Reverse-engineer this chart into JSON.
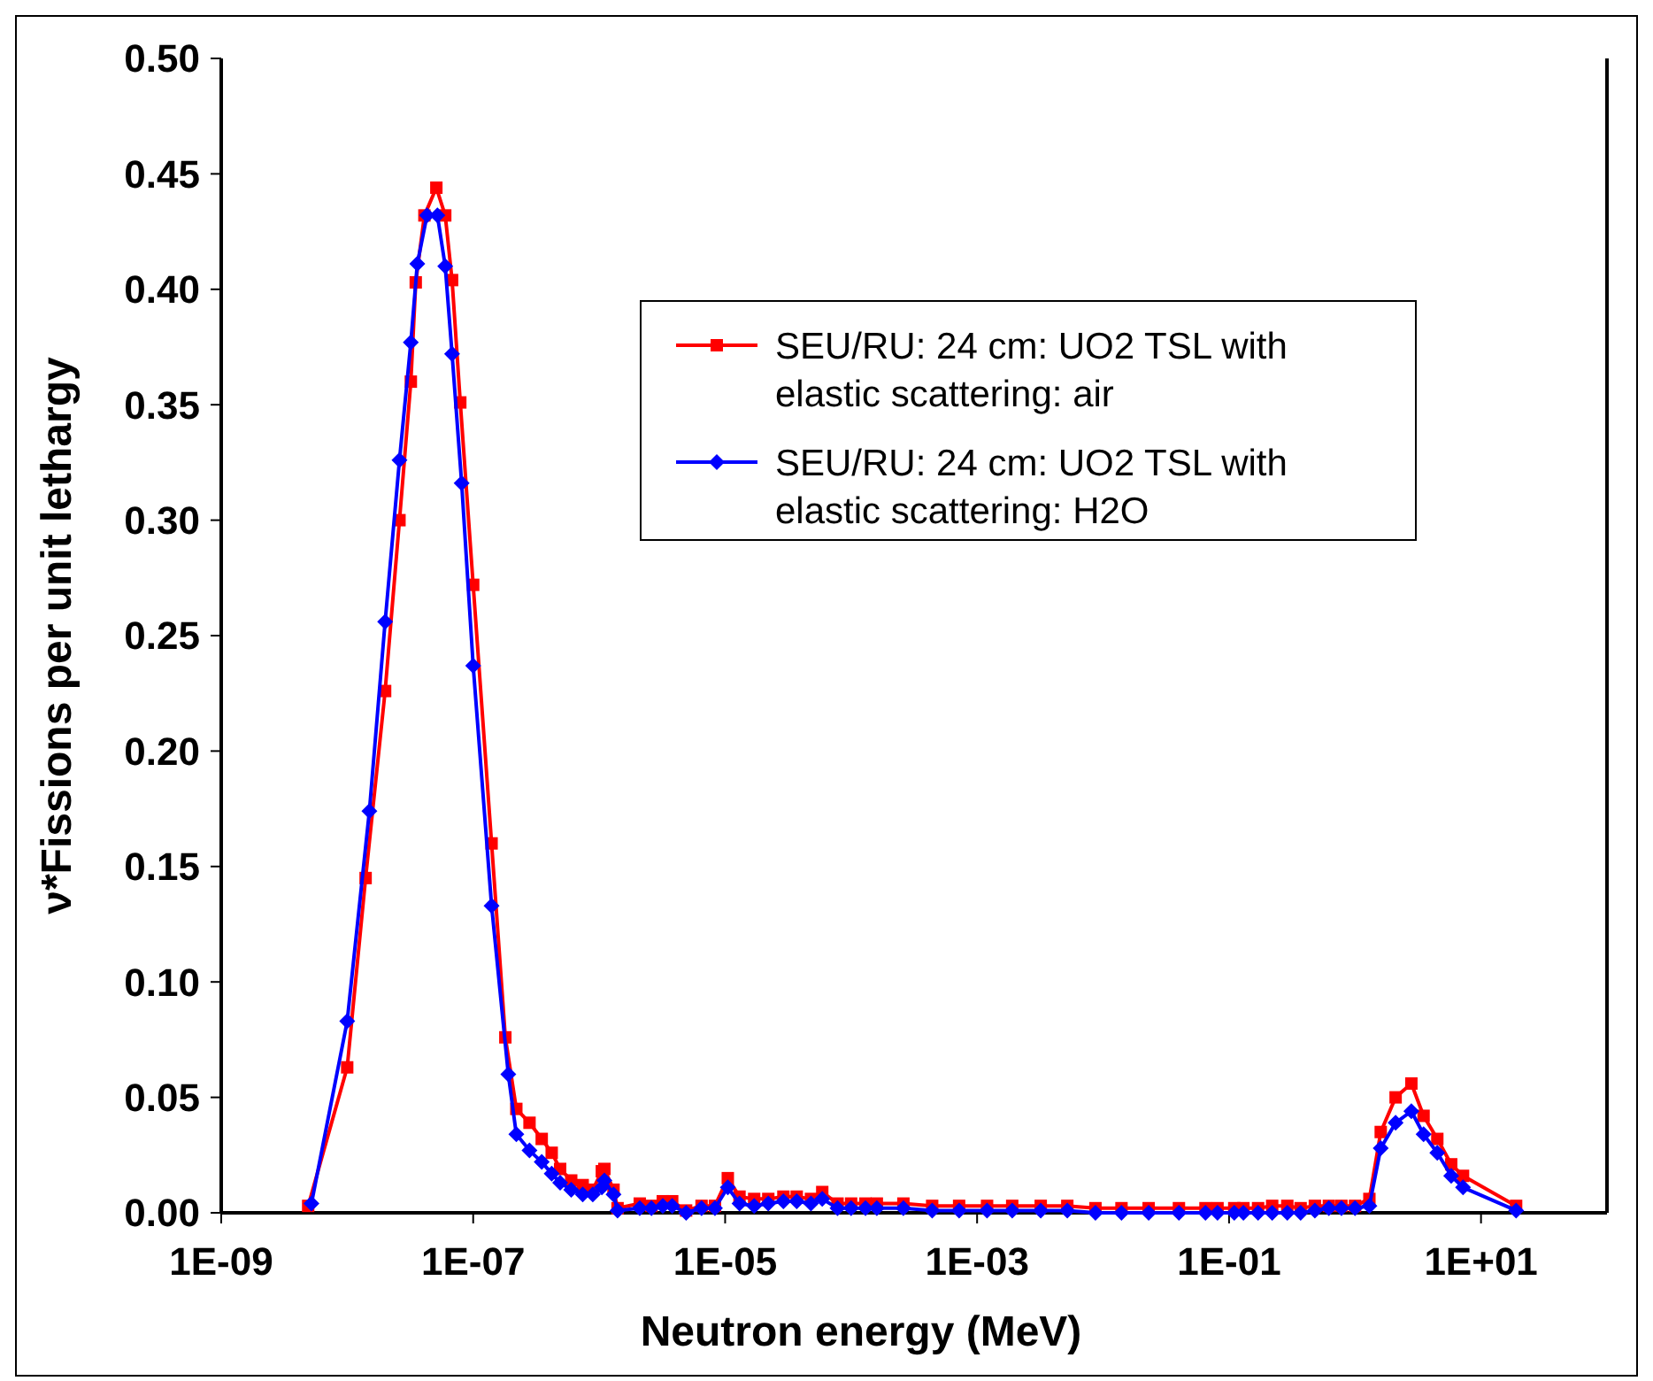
{
  "chart_data": {
    "type": "line",
    "xlabel": "Neutron energy (MeV)",
    "ylabel": "ν*Fissions per unit lethargy",
    "log": "x",
    "xlim": [
      1e-09,
      100
    ],
    "xticks": [
      {
        "value": 1e-09,
        "label": "1E-09"
      },
      {
        "value": 1e-07,
        "label": "1E-07"
      },
      {
        "value": 1e-05,
        "label": "1E-05"
      },
      {
        "value": 0.001,
        "label": "1E-03"
      },
      {
        "value": 0.1,
        "label": "1E-01"
      },
      {
        "value": 10,
        "label": "1E+01"
      }
    ],
    "ylim": [
      0,
      0.5
    ],
    "yticks": [
      {
        "value": 0,
        "label": "0.00"
      },
      {
        "value": 0.05,
        "label": "0.05"
      },
      {
        "value": 0.1,
        "label": "0.10"
      },
      {
        "value": 0.15,
        "label": "0.15"
      },
      {
        "value": 0.2,
        "label": "0.20"
      },
      {
        "value": 0.25,
        "label": "0.25"
      },
      {
        "value": 0.3,
        "label": "0.30"
      },
      {
        "value": 0.35,
        "label": "0.35"
      },
      {
        "value": 0.4,
        "label": "0.40"
      },
      {
        "value": 0.45,
        "label": "0.45"
      },
      {
        "value": 0.5,
        "label": "0.50"
      }
    ],
    "grid": false,
    "legend": "top right",
    "line_style": "solid",
    "series": [
      {
        "name": "SEU/RU: 24 cm: UO2 TSL with elastic scattering: air",
        "color": "#ff0000",
        "marker": "square",
        "x": [
          4.9e-09,
          1e-08,
          1.4e-08,
          2e-08,
          2.6e-08,
          3.2e-08,
          3.5e-08,
          4.1e-08,
          5.1e-08,
          6e-08,
          6.8e-08,
          7.9e-08,
          1e-07,
          1.4e-07,
          1.8e-07,
          2.2e-07,
          2.8e-07,
          3.5e-07,
          4.2e-07,
          4.9e-07,
          6e-07,
          7.4e-07,
          8.9e-07,
          1.05e-06,
          1.1e-06,
          1.3e-06,
          1.4e-06,
          2.1e-06,
          2.6e-06,
          3.2e-06,
          3.8e-06,
          4.9e-06,
          6.5e-06,
          8.3e-06,
          1.05e-05,
          1.3e-05,
          1.7e-05,
          2.2e-05,
          2.9e-05,
          3.7e-05,
          4.8e-05,
          5.9e-05,
          7.8e-05,
          0.0001,
          0.00013,
          0.00016,
          0.00026,
          0.00044,
          0.00072,
          0.0012,
          0.0019,
          0.0032,
          0.0052,
          0.0087,
          0.014,
          0.023,
          0.04,
          0.065,
          0.081,
          0.11,
          0.13,
          0.17,
          0.22,
          0.29,
          0.37,
          0.48,
          0.62,
          0.78,
          1,
          1.3,
          1.6,
          2.1,
          2.8,
          3.5,
          4.5,
          5.8,
          7.2,
          19
        ],
        "values": [
          0.003,
          0.063,
          0.145,
          0.226,
          0.3,
          0.36,
          0.403,
          0.432,
          0.444,
          0.432,
          0.404,
          0.351,
          0.272,
          0.16,
          0.076,
          0.045,
          0.039,
          0.032,
          0.026,
          0.019,
          0.014,
          0.012,
          0.01,
          0.018,
          0.019,
          0.01,
          0.002,
          0.004,
          0.003,
          0.005,
          0.005,
          0.001,
          0.003,
          0.003,
          0.015,
          0.007,
          0.006,
          0.006,
          0.007,
          0.007,
          0.006,
          0.009,
          0.004,
          0.004,
          0.004,
          0.004,
          0.004,
          0.003,
          0.003,
          0.003,
          0.003,
          0.003,
          0.003,
          0.002,
          0.002,
          0.002,
          0.002,
          0.002,
          0.002,
          0.002,
          0.002,
          0.002,
          0.003,
          0.003,
          0.002,
          0.003,
          0.003,
          0.003,
          0.003,
          0.006,
          0.035,
          0.05,
          0.056,
          0.042,
          0.032,
          0.021,
          0.016,
          0.003
        ]
      },
      {
        "name": "SEU/RU: 24 cm: UO2 TSL with elastic scattering: H2O",
        "color": "#0000ff",
        "marker": "diamond",
        "x": [
          5.2e-09,
          1e-08,
          1.5e-08,
          2e-08,
          2.6e-08,
          3.2e-08,
          3.6e-08,
          4.3e-08,
          5.2e-08,
          6e-08,
          6.8e-08,
          8.1e-08,
          1e-07,
          1.4e-07,
          1.9e-07,
          2.2e-07,
          2.8e-07,
          3.5e-07,
          4.2e-07,
          4.9e-07,
          6e-07,
          7.4e-07,
          8.9e-07,
          1.05e-06,
          1.1e-06,
          1.3e-06,
          1.4e-06,
          2.1e-06,
          2.6e-06,
          3.2e-06,
          3.8e-06,
          4.9e-06,
          6.5e-06,
          8.3e-06,
          1.05e-05,
          1.3e-05,
          1.7e-05,
          2.2e-05,
          2.9e-05,
          3.7e-05,
          4.8e-05,
          5.9e-05,
          7.8e-05,
          0.0001,
          0.00013,
          0.00016,
          0.00026,
          0.00044,
          0.00072,
          0.0012,
          0.0019,
          0.0032,
          0.0052,
          0.0087,
          0.014,
          0.023,
          0.04,
          0.065,
          0.081,
          0.11,
          0.13,
          0.17,
          0.22,
          0.29,
          0.37,
          0.48,
          0.62,
          0.78,
          1,
          1.3,
          1.6,
          2.1,
          2.8,
          3.5,
          4.5,
          5.8,
          7.2,
          19
        ],
        "values": [
          0.004,
          0.083,
          0.174,
          0.256,
          0.326,
          0.377,
          0.411,
          0.432,
          0.432,
          0.41,
          0.372,
          0.316,
          0.237,
          0.133,
          0.06,
          0.034,
          0.027,
          0.022,
          0.017,
          0.013,
          0.01,
          0.008,
          0.008,
          0.011,
          0.014,
          0.008,
          0.001,
          0.002,
          0.002,
          0.003,
          0.003,
          0,
          0.002,
          0.002,
          0.011,
          0.004,
          0.003,
          0.004,
          0.005,
          0.005,
          0.004,
          0.006,
          0.002,
          0.002,
          0.002,
          0.002,
          0.002,
          0.001,
          0.001,
          0.001,
          0.001,
          0.001,
          0.001,
          0,
          0,
          0,
          0,
          0,
          0,
          0,
          0,
          0,
          0,
          0,
          0,
          0.001,
          0.002,
          0.002,
          0.002,
          0.003,
          0.028,
          0.039,
          0.044,
          0.034,
          0.026,
          0.016,
          0.011,
          0.001
        ]
      }
    ]
  }
}
